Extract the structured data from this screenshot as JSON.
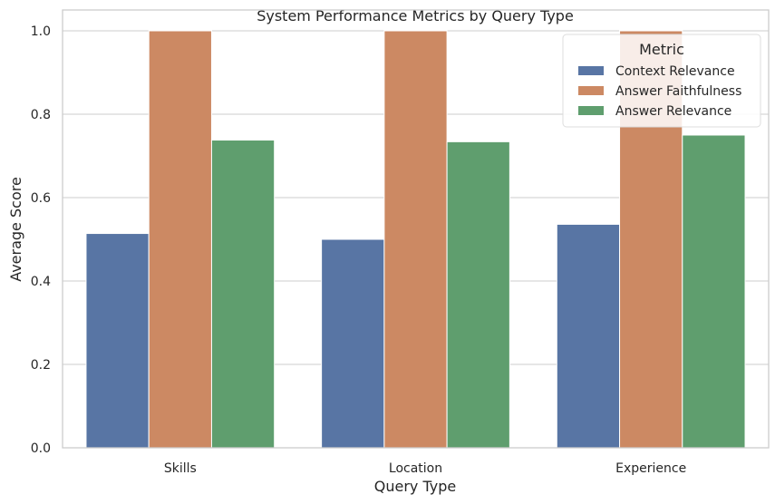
{
  "chart_data": {
    "type": "bar",
    "title": "System Performance Metrics by Query Type",
    "xlabel": "Query Type",
    "ylabel": "Average Score",
    "categories": [
      "Skills",
      "Location",
      "Experience"
    ],
    "series": [
      {
        "name": "Context Relevance",
        "color": "#5875a4",
        "values": [
          0.514,
          0.5,
          0.536
        ]
      },
      {
        "name": "Answer Faithfulness",
        "color": "#cc8963",
        "values": [
          1.0,
          1.0,
          1.0
        ]
      },
      {
        "name": "Answer Relevance",
        "color": "#5f9e6e",
        "values": [
          0.738,
          0.734,
          0.75
        ]
      }
    ],
    "ylim": [
      0,
      1.05
    ],
    "yticks": [
      0.0,
      0.2,
      0.4,
      0.6,
      0.8,
      1.0
    ],
    "ytick_labels": [
      "0.0",
      "0.2",
      "0.4",
      "0.6",
      "0.8",
      "1.0"
    ],
    "grid": true,
    "legend": {
      "title": "Metric",
      "position": "top-right"
    }
  }
}
